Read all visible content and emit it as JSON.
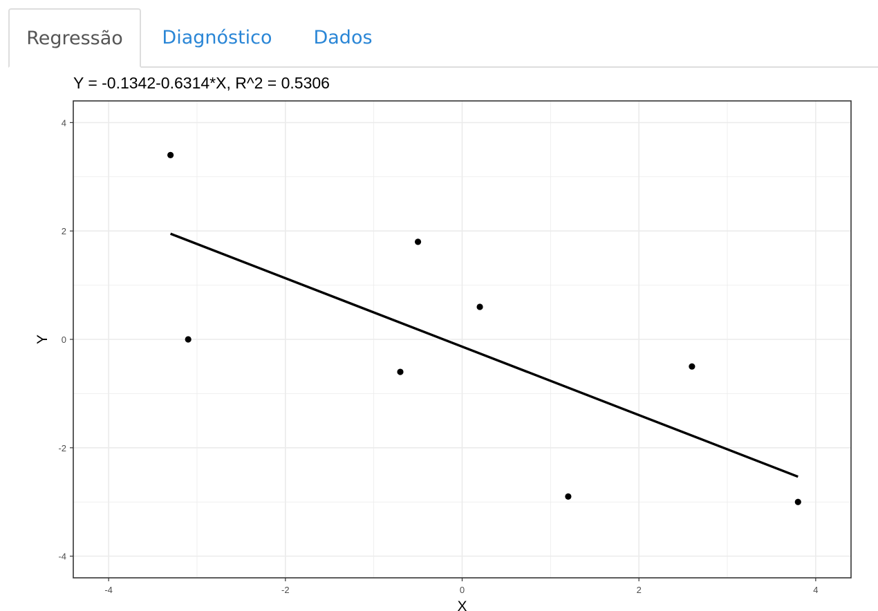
{
  "tabs": [
    {
      "label": "Regressão",
      "active": true
    },
    {
      "label": "Diagnóstico",
      "active": false
    },
    {
      "label": "Dados",
      "active": false
    }
  ],
  "colors": {
    "tab_active_text": "#555555",
    "tab_inactive_text": "#2a86d6",
    "grid": "#ebebeb",
    "panel_border": "#333333",
    "points": "#000000",
    "fit_line": "#000000"
  },
  "chart_data": {
    "type": "scatter",
    "title": "Y = -0.1342-0.6314*X, R^2 = 0.5306",
    "xlabel": "X",
    "ylabel": "Y",
    "xlim": [
      -4.4,
      4.4
    ],
    "ylim": [
      -4.4,
      4.4
    ],
    "x_ticks": [
      -4,
      -2,
      0,
      2,
      4
    ],
    "y_ticks": [
      -4,
      -2,
      0,
      2,
      4
    ],
    "x_tick_labels": [
      "-4",
      "-2",
      "0",
      "2",
      "4"
    ],
    "y_tick_labels": [
      "-4",
      "-2",
      "0",
      "2",
      "4"
    ],
    "grid": true,
    "legend": "none",
    "points": {
      "x": [
        -3.3,
        -3.1,
        -0.7,
        -0.5,
        0.2,
        1.2,
        2.6,
        3.8
      ],
      "y": [
        3.4,
        0.0,
        -0.6,
        1.8,
        0.6,
        -2.9,
        -0.5,
        -3.0
      ]
    },
    "fit_line": {
      "intercept": -0.1342,
      "slope": -0.6314,
      "x_range": [
        -3.3,
        3.8
      ]
    }
  }
}
